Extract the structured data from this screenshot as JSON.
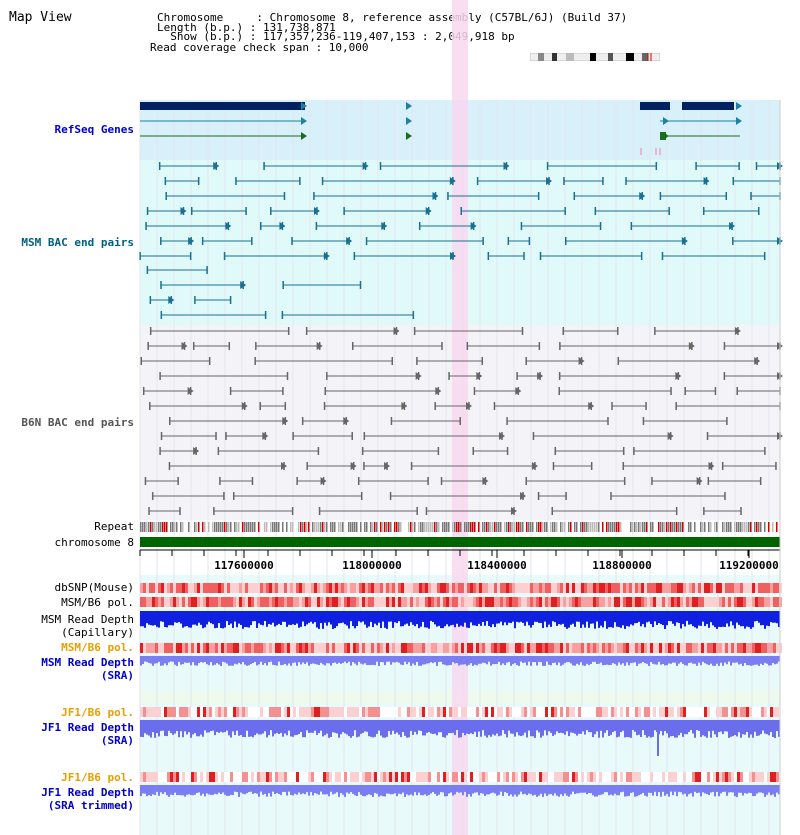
{
  "header": {
    "title": "Map View",
    "info_lines": [
      "Chromosome     : Chromosome 8, reference assembly (C57BL/6J) (Build 37)",
      "Length (b.p.) : 131,738,871",
      "  Show (b.p.) : 117,357,236-119,407,153 : 2,049,918 bp",
      "Read coverage check span : 10,000"
    ]
  },
  "tracks": {
    "refseq": "RefSeq Genes",
    "msm_bac": "MSM BAC end pairs",
    "b6n_bac": "B6N BAC end pairs",
    "repeat": "Repeat",
    "chromosome": "chromosome 8",
    "dbsnp": "dbSNP(Mouse)",
    "msm_b6_pol_1": "MSM/B6 pol.",
    "msm_depth_cap": "MSM Read Depth\n(Capillary)",
    "msm_b6_pol_2": "MSM/B6 pol.",
    "msm_depth_sra": "MSM Read Depth\n(SRA)",
    "jf1_b6_pol_1": "JF1/B6 pol.",
    "jf1_depth_sra": "JF1 Read Depth\n(SRA)",
    "jf1_b6_pol_2": "JF1/B6 pol.",
    "jf1_depth_trim": "JF1 Read Depth\n(SRA trimmed)"
  },
  "axis": {
    "ticks": [
      "117600000",
      "118000000",
      "118400000",
      "118800000",
      "119200000"
    ]
  },
  "colors": {
    "refseq_bg": "#d8f0fa",
    "bac_bg": "#e0fafa",
    "highlight": "#f8d8f0",
    "msm_label": "#0000cc",
    "pol_label": "#e6a000",
    "chromosome_bar": "#006400",
    "gray_label": "#000000"
  }
}
